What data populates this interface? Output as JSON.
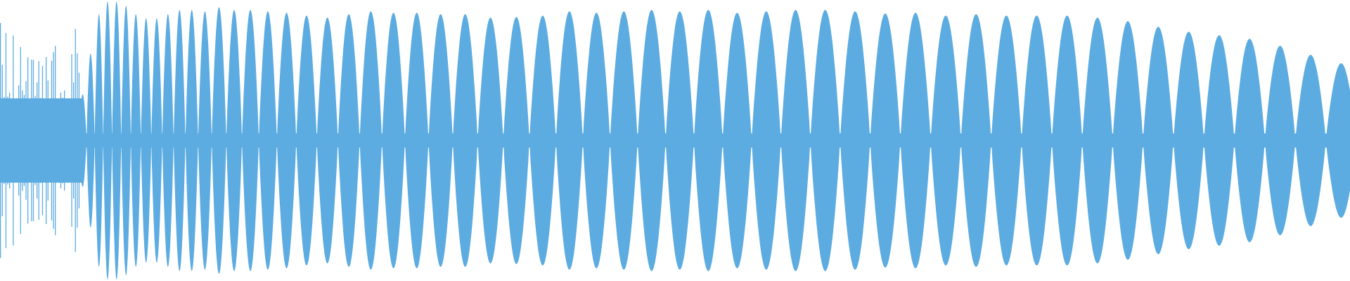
{
  "chart_data": {
    "type": "area",
    "title": "",
    "xlabel": "",
    "ylabel": "",
    "ylim": [
      -1,
      1
    ],
    "grid": false,
    "legend": "none",
    "color": "#5DACE1",
    "background": "#FFFFFF",
    "description_kind": "audio-waveform",
    "lobe_amplitudes": [
      0.33,
      0.62,
      0.9,
      0.99,
      0.99,
      0.96,
      0.9,
      0.87,
      0.87,
      0.9,
      0.93,
      0.93,
      0.92,
      0.95,
      0.93,
      0.93,
      0.92,
      0.91,
      0.89,
      0.875,
      0.9,
      0.92,
      0.91,
      0.91,
      0.9,
      0.9,
      0.875,
      0.88,
      0.89,
      0.92,
      0.91,
      0.92,
      0.93,
      0.92,
      0.93,
      0.91,
      0.92,
      0.93,
      0.93,
      0.92,
      0.905,
      0.91,
      0.89,
      0.9,
      0.89,
      0.89,
      0.89,
      0.875,
      0.85,
      0.81,
      0.775,
      0.75,
      0.725,
      0.675,
      0.61,
      0.55,
      0.5
    ],
    "baseline_amplitude": 0.05
  }
}
